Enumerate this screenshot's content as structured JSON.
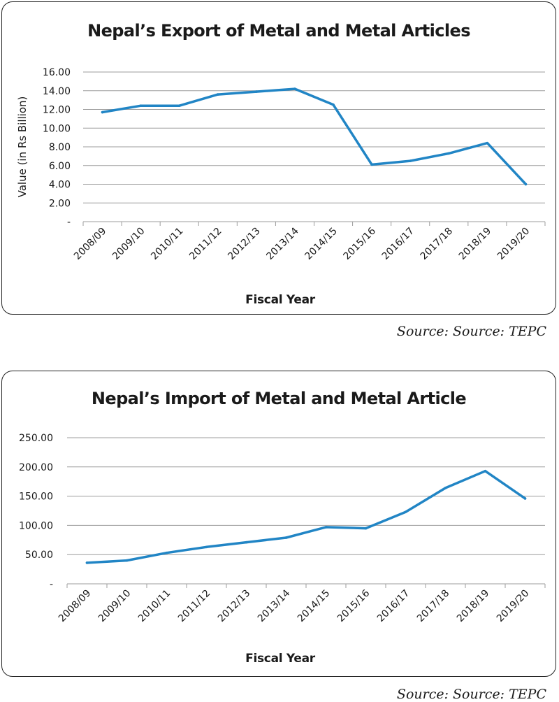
{
  "colors": {
    "line": "#2185c5",
    "grid": "#9c9c9c",
    "text": "#1a1a1a",
    "border": "#222222"
  },
  "chart_data": [
    {
      "type": "line",
      "title": "Nepal’s Export of Metal and Metal Articles",
      "xlabel": "Fiscal Year",
      "ylabel": "Value (in Rs Billion)",
      "categories": [
        "2008/09",
        "2009/10",
        "2010/11",
        "2011/12",
        "2012/13",
        "2013/14",
        "2014/15",
        "2015/16",
        "2016/17",
        "2017/18",
        "2018/19",
        "2019/20"
      ],
      "values": [
        11.7,
        12.4,
        12.4,
        13.6,
        13.9,
        14.2,
        12.5,
        6.1,
        6.5,
        7.3,
        8.4,
        4.0
      ],
      "ylim": [
        0,
        16
      ],
      "yticks": [
        0,
        2,
        4,
        6,
        8,
        10,
        12,
        14,
        16
      ],
      "ytick_labels": [
        "-",
        "2.00",
        "4.00",
        "6.00",
        "8.00",
        "10.00",
        "12.00",
        "14.00",
        "16.00"
      ],
      "grid": true,
      "legend": "none"
    },
    {
      "type": "line",
      "title": "Nepal’s Import of Metal and Metal Article",
      "xlabel": "Fiscal Year",
      "ylabel": "",
      "categories": [
        "2008/09",
        "2009/10",
        "2010/11",
        "2011/12",
        "2012/13",
        "2013/14",
        "2014/15",
        "2015/16",
        "2016/17",
        "2017/18",
        "2018/19",
        "2019/20"
      ],
      "values": [
        36,
        40,
        53,
        63,
        71,
        79,
        97,
        95,
        123,
        164,
        193,
        146
      ],
      "ylim": [
        0,
        250
      ],
      "yticks": [
        0,
        50,
        100,
        150,
        200,
        250
      ],
      "ytick_labels": [
        "-",
        "50.00",
        "100.00",
        "150.00",
        "200.00",
        "250.00"
      ],
      "grid": true,
      "legend": "none"
    }
  ],
  "sources": [
    "Source: Source: TEPC",
    "Source: Source: TEPC"
  ]
}
